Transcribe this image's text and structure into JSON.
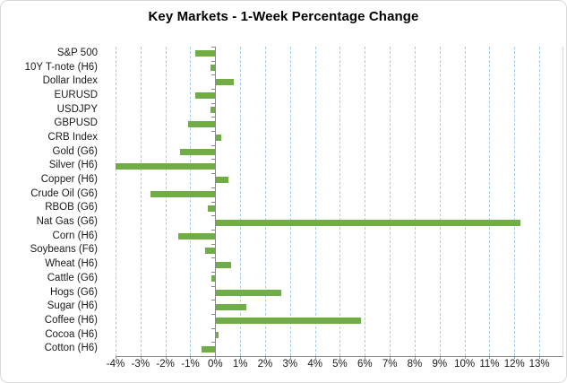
{
  "chart_data": {
    "type": "bar",
    "orientation": "horizontal",
    "title": "Key Markets - 1-Week Percentage Change",
    "categories": [
      "S&P 500",
      "10Y T-note (H6)",
      "Dollar Index",
      "EURUSD",
      "USDJPY",
      "GBPUSD",
      "CRB Index",
      "Gold (G6)",
      "Silver (H6)",
      "Copper (H6)",
      "Crude Oil (G6)",
      "RBOB (G6)",
      "Nat Gas (G6)",
      "Corn (H6)",
      "Soybeans (F6)",
      "Wheat (H6)",
      "Cattle (G6)",
      "Hogs (G6)",
      "Sugar (H6)",
      "Coffee (H6)",
      "Cocoa (H6)",
      "Cotton (H6)"
    ],
    "values": [
      -0.8,
      -0.2,
      0.7,
      -0.8,
      -0.2,
      -1.1,
      0.2,
      -1.4,
      -4.0,
      0.5,
      -2.6,
      -0.3,
      12.2,
      -1.5,
      -0.4,
      0.6,
      -0.15,
      2.6,
      1.2,
      5.8,
      0.1,
      -0.55
    ],
    "value_unit": "%",
    "xlabel": "",
    "ylabel": "",
    "xlim": [
      -4,
      13.9
    ],
    "xtick_interval": 1,
    "xtick_labels": [
      "-4%",
      "-3%",
      "-2%",
      "-1%",
      "0%",
      "1%",
      "2%",
      "3%",
      "4%",
      "5%",
      "6%",
      "7%",
      "8%",
      "9%",
      "10%",
      "11%",
      "12%",
      "13%"
    ],
    "grid": "vertical dashed gridlines every 1%",
    "legend": "none",
    "colors": {
      "bar": "#70AD47",
      "gridline": "#A6CAEC",
      "axis": "#898989",
      "text": "#1A1A1A",
      "border": "#D9D9D9",
      "background": "#FFFFFF"
    }
  }
}
